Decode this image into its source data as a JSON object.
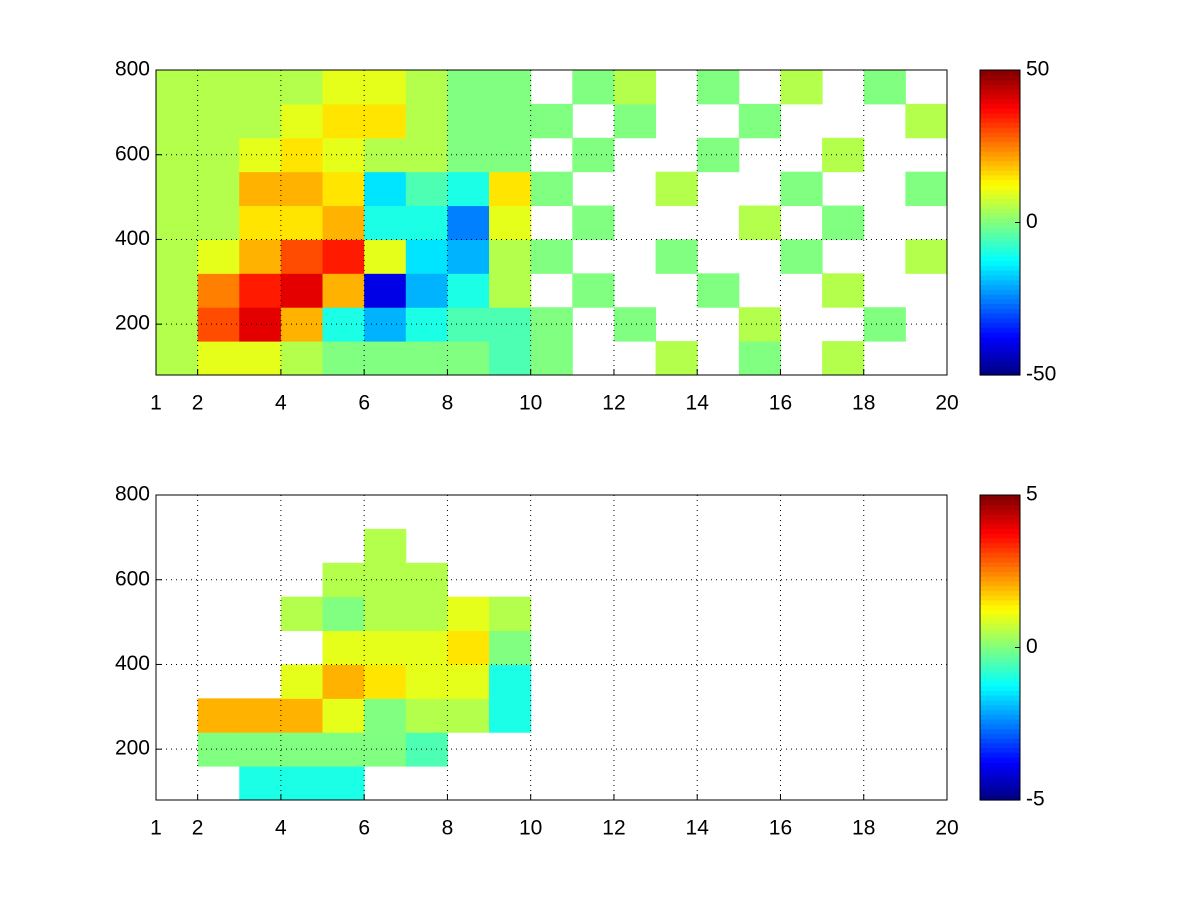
{
  "chart_data": [
    {
      "type": "heatmap",
      "colormap": "jet",
      "grid": true,
      "x_edges": [
        1,
        2,
        3,
        4,
        5,
        6,
        7,
        8,
        9,
        10,
        11,
        12,
        13,
        14,
        15,
        16,
        17,
        18,
        19,
        20
      ],
      "y_edges": [
        80,
        160,
        240,
        320,
        400,
        480,
        560,
        640,
        720,
        800
      ],
      "values": [
        [
          5,
          10,
          10,
          5,
          0,
          0,
          0,
          0,
          -5,
          0,
          null,
          null,
          5,
          null,
          0,
          null,
          5,
          null,
          null
        ],
        [
          5,
          30,
          40,
          20,
          -10,
          -20,
          -10,
          -5,
          -5,
          0,
          null,
          0,
          null,
          null,
          5,
          null,
          null,
          0,
          null
        ],
        [
          5,
          25,
          35,
          40,
          20,
          -40,
          -20,
          -10,
          5,
          null,
          0,
          null,
          null,
          0,
          null,
          null,
          5,
          null,
          null
        ],
        [
          5,
          10,
          20,
          30,
          35,
          10,
          -15,
          -20,
          5,
          0,
          null,
          null,
          0,
          null,
          null,
          0,
          null,
          null,
          5
        ],
        [
          5,
          5,
          15,
          15,
          20,
          -10,
          -10,
          -25,
          10,
          null,
          0,
          null,
          null,
          null,
          5,
          null,
          0,
          null,
          null
        ],
        [
          5,
          5,
          20,
          20,
          15,
          -15,
          -5,
          -10,
          15,
          0,
          null,
          null,
          5,
          null,
          null,
          0,
          null,
          null,
          0
        ],
        [
          5,
          5,
          10,
          15,
          10,
          5,
          5,
          0,
          0,
          null,
          0,
          null,
          null,
          0,
          null,
          null,
          5,
          null,
          null
        ],
        [
          5,
          5,
          5,
          10,
          15,
          15,
          5,
          0,
          0,
          0,
          null,
          0,
          null,
          null,
          0,
          null,
          null,
          null,
          5
        ],
        [
          5,
          5,
          5,
          5,
          10,
          10,
          5,
          0,
          0,
          null,
          0,
          5,
          null,
          0,
          null,
          5,
          null,
          0,
          null
        ]
      ],
      "xlim": [
        1,
        20
      ],
      "ylim": [
        80,
        800
      ],
      "xticks": [
        1,
        2,
        4,
        6,
        8,
        10,
        12,
        14,
        16,
        18,
        20
      ],
      "yticks": [
        200,
        400,
        600,
        800
      ],
      "clim": [
        -50,
        50
      ],
      "cticks": [
        -50,
        0,
        50
      ]
    },
    {
      "type": "heatmap",
      "colormap": "jet",
      "grid": true,
      "x_edges": [
        1,
        2,
        3,
        4,
        5,
        6,
        7,
        8,
        9,
        10,
        11,
        12,
        13,
        14,
        15,
        16,
        17,
        18,
        19,
        20
      ],
      "y_edges": [
        80,
        160,
        240,
        320,
        400,
        480,
        560,
        640,
        720,
        800
      ],
      "values": [
        [
          null,
          null,
          -1,
          -1,
          -1,
          null,
          null,
          null,
          null,
          null,
          null,
          null,
          null,
          null,
          null,
          null,
          null,
          null,
          null
        ],
        [
          null,
          0,
          0,
          0,
          0,
          0,
          -0.5,
          null,
          null,
          null,
          null,
          null,
          null,
          null,
          null,
          null,
          null,
          null,
          null
        ],
        [
          null,
          2,
          2,
          2,
          1,
          0,
          0.5,
          0.5,
          -1,
          null,
          null,
          null,
          null,
          null,
          null,
          null,
          null,
          null,
          null
        ],
        [
          null,
          null,
          null,
          1,
          2,
          1.5,
          1,
          1,
          -1,
          null,
          null,
          null,
          null,
          null,
          null,
          null,
          null,
          null,
          null
        ],
        [
          null,
          null,
          null,
          null,
          1,
          1,
          1,
          1.5,
          0,
          null,
          null,
          null,
          null,
          null,
          null,
          null,
          null,
          null,
          null
        ],
        [
          null,
          null,
          null,
          0.5,
          0,
          0.5,
          0.5,
          1,
          0.5,
          null,
          null,
          null,
          null,
          null,
          null,
          null,
          null,
          null,
          null
        ],
        [
          null,
          null,
          null,
          null,
          0.5,
          0.5,
          0.5,
          null,
          null,
          null,
          null,
          null,
          null,
          null,
          null,
          null,
          null,
          null,
          null
        ],
        [
          null,
          null,
          null,
          null,
          null,
          0.5,
          null,
          null,
          null,
          null,
          null,
          null,
          null,
          null,
          null,
          null,
          null,
          null,
          null
        ],
        [
          null,
          null,
          null,
          null,
          null,
          null,
          null,
          null,
          null,
          null,
          null,
          null,
          null,
          null,
          null,
          null,
          null,
          null,
          null
        ]
      ],
      "xlim": [
        1,
        20
      ],
      "ylim": [
        80,
        800
      ],
      "xticks": [
        1,
        2,
        4,
        6,
        8,
        10,
        12,
        14,
        16,
        18,
        20
      ],
      "yticks": [
        200,
        400,
        600,
        800
      ],
      "clim": [
        -5,
        5
      ],
      "cticks": [
        -5,
        0,
        5
      ]
    }
  ]
}
